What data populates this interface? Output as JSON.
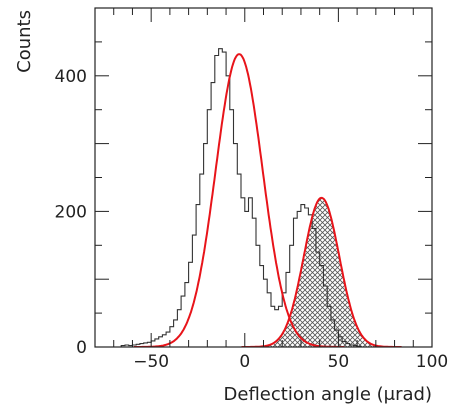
{
  "chart_data": {
    "type": "histogram",
    "xlabel": "Deflection angle (μrad)",
    "ylabel": "Counts",
    "xlim": [
      -80,
      100
    ],
    "ylim": [
      0,
      500
    ],
    "x_ticks": [
      -50,
      0,
      50,
      100
    ],
    "y_ticks": [
      0,
      200,
      400
    ],
    "grid": false,
    "colors": {
      "histogram": "#333333",
      "fit": "#e8141a",
      "hatch": "#555555"
    },
    "histogram": {
      "bin_width": 2,
      "x_start": -80,
      "counts": [
        0,
        0,
        0,
        0,
        0,
        0,
        0,
        2,
        3,
        2,
        3,
        4,
        5,
        6,
        7,
        9,
        12,
        15,
        18,
        22,
        30,
        40,
        55,
        75,
        95,
        125,
        165,
        210,
        255,
        300,
        350,
        390,
        430,
        440,
        435,
        400,
        350,
        300,
        255,
        220,
        200,
        220,
        190,
        150,
        120,
        100,
        80,
        60,
        55,
        60,
        80,
        110,
        150,
        190,
        200,
        210,
        205,
        195,
        175,
        140,
        120,
        90,
        60,
        40,
        25,
        15,
        8,
        5,
        3,
        2,
        1,
        0,
        0,
        0,
        0,
        0,
        0,
        0,
        0,
        0,
        0,
        0,
        0,
        0,
        0,
        0,
        0,
        0,
        0,
        0
      ]
    },
    "fits": [
      {
        "type": "gaussian",
        "amplitude": 432,
        "mean": -3,
        "sigma": 12.5
      },
      {
        "type": "gaussian",
        "amplitude": 220,
        "mean": 41,
        "sigma": 9.5,
        "shaded": true
      }
    ]
  }
}
